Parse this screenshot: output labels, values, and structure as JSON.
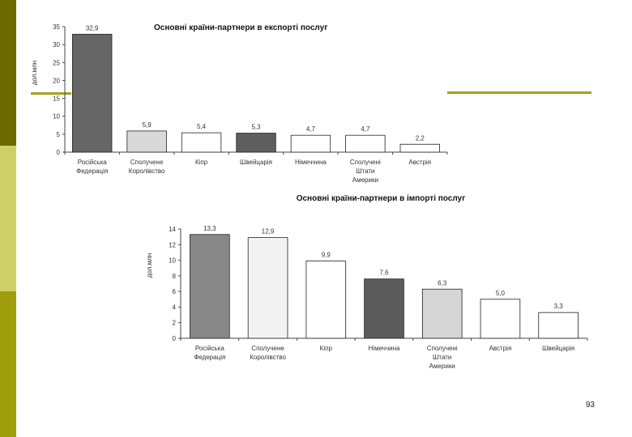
{
  "page_number": "93",
  "chart_data": [
    {
      "type": "bar",
      "title": "Основні країни-партнери в експорті послуг",
      "ylabel": "дол.млн",
      "categories": [
        [
          "Російська",
          "Федерація"
        ],
        [
          "Сполучене",
          "Королівство"
        ],
        [
          "Кіпр"
        ],
        [
          "Швейцарія"
        ],
        [
          "Німеччина"
        ],
        [
          "Сполучені",
          "Штати",
          "Америки"
        ],
        [
          "Австрія"
        ]
      ],
      "values": [
        32.9,
        5.9,
        5.4,
        5.3,
        4.7,
        4.7,
        2.2
      ],
      "value_labels": [
        "32,9",
        "5,9",
        "5,4",
        "5,3",
        "4,7",
        "4,7",
        "2,2"
      ],
      "bar_colors": [
        "#666666",
        "#d9d9d9",
        "#ffffff",
        "#5e5e5e",
        "#ffffff",
        "#ffffff",
        "#ffffff"
      ],
      "ylim": [
        0,
        35
      ],
      "yticks": [
        0,
        5,
        10,
        15,
        20,
        25,
        30,
        35
      ],
      "grid": false
    },
    {
      "type": "bar",
      "title": "Основні країни-партнери в імпорті послуг",
      "ylabel": "дол.млн",
      "categories": [
        [
          "Російська",
          "Федерація"
        ],
        [
          "Сполучене",
          "Королівство"
        ],
        [
          "Кіпр"
        ],
        [
          "Німеччина"
        ],
        [
          "Сполучені",
          "Штати",
          "Америки"
        ],
        [
          "Австрія"
        ],
        [
          "Швейцарія"
        ]
      ],
      "values": [
        13.3,
        12.9,
        9.9,
        7.6,
        6.3,
        5.0,
        3.3
      ],
      "value_labels": [
        "13,3",
        "12,9",
        "9,9",
        "7,6",
        "6,3",
        "5,0",
        "3,3"
      ],
      "bar_colors": [
        "#878787",
        "#f3f3f3",
        "#ffffff",
        "#5b5b5b",
        "#d6d6d6",
        "#ffffff",
        "#ffffff"
      ],
      "ylim": [
        0,
        14
      ],
      "yticks": [
        0,
        2,
        4,
        6,
        8,
        10,
        12,
        14
      ],
      "grid": false
    }
  ]
}
